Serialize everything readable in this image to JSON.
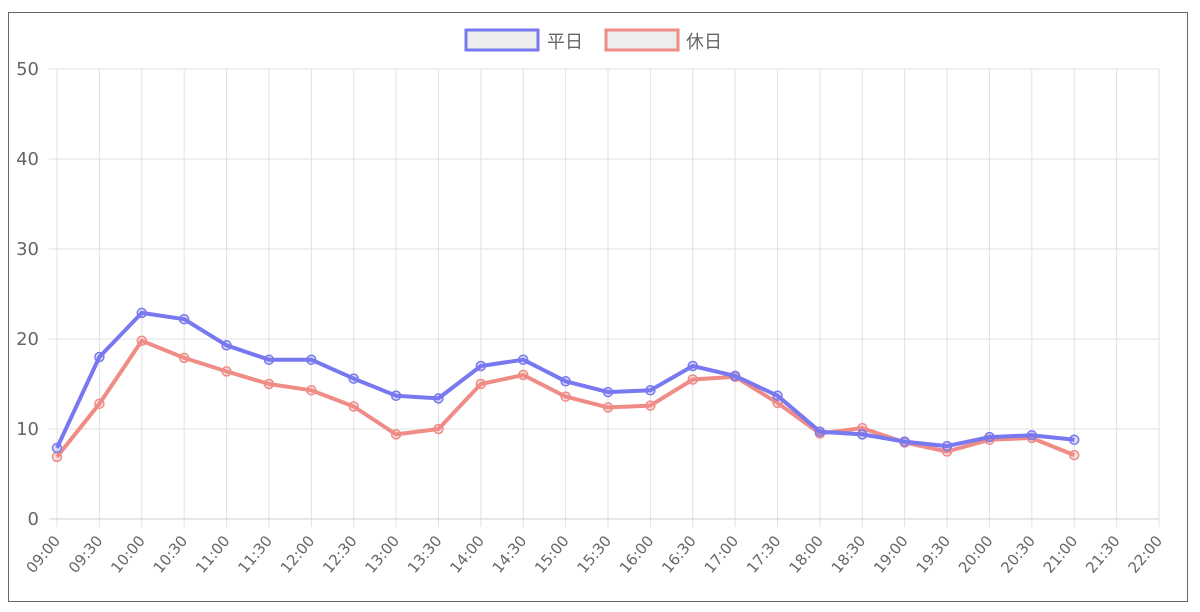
{
  "chart_data": {
    "type": "line",
    "categories": [
      "09:00",
      "09:30",
      "10:00",
      "10:30",
      "11:00",
      "11:30",
      "12:00",
      "12:30",
      "13:00",
      "13:30",
      "14:00",
      "14:30",
      "15:00",
      "15:30",
      "16:00",
      "16:30",
      "17:00",
      "17:30",
      "18:00",
      "18:30",
      "19:00",
      "19:30",
      "20:00",
      "20:30",
      "21:00",
      "21:30",
      "22:00"
    ],
    "series": [
      {
        "name": "平日",
        "color": "#7878f0",
        "values": [
          7.9,
          18.0,
          22.9,
          22.2,
          19.3,
          17.7,
          17.7,
          15.6,
          13.7,
          13.4,
          17.0,
          17.7,
          15.3,
          14.1,
          14.3,
          17.0,
          15.9,
          13.7,
          9.7,
          9.4,
          8.6,
          8.1,
          9.1,
          9.3,
          8.8,
          null,
          null
        ]
      },
      {
        "name": "休日",
        "color": "#ef8c86",
        "values": [
          6.9,
          12.8,
          19.8,
          17.9,
          16.4,
          15.0,
          14.3,
          12.5,
          9.4,
          10.0,
          15.0,
          16.0,
          13.6,
          12.4,
          12.6,
          15.5,
          15.8,
          12.9,
          9.5,
          10.1,
          8.5,
          7.5,
          8.8,
          9.0,
          7.1,
          null,
          null
        ]
      }
    ],
    "ylim": [
      0,
      50
    ],
    "yticks": [
      "0",
      "10",
      "20",
      "30",
      "40",
      "50"
    ],
    "grid": true,
    "legend": "top-center",
    "title": "",
    "xlabel": "",
    "ylabel": ""
  }
}
